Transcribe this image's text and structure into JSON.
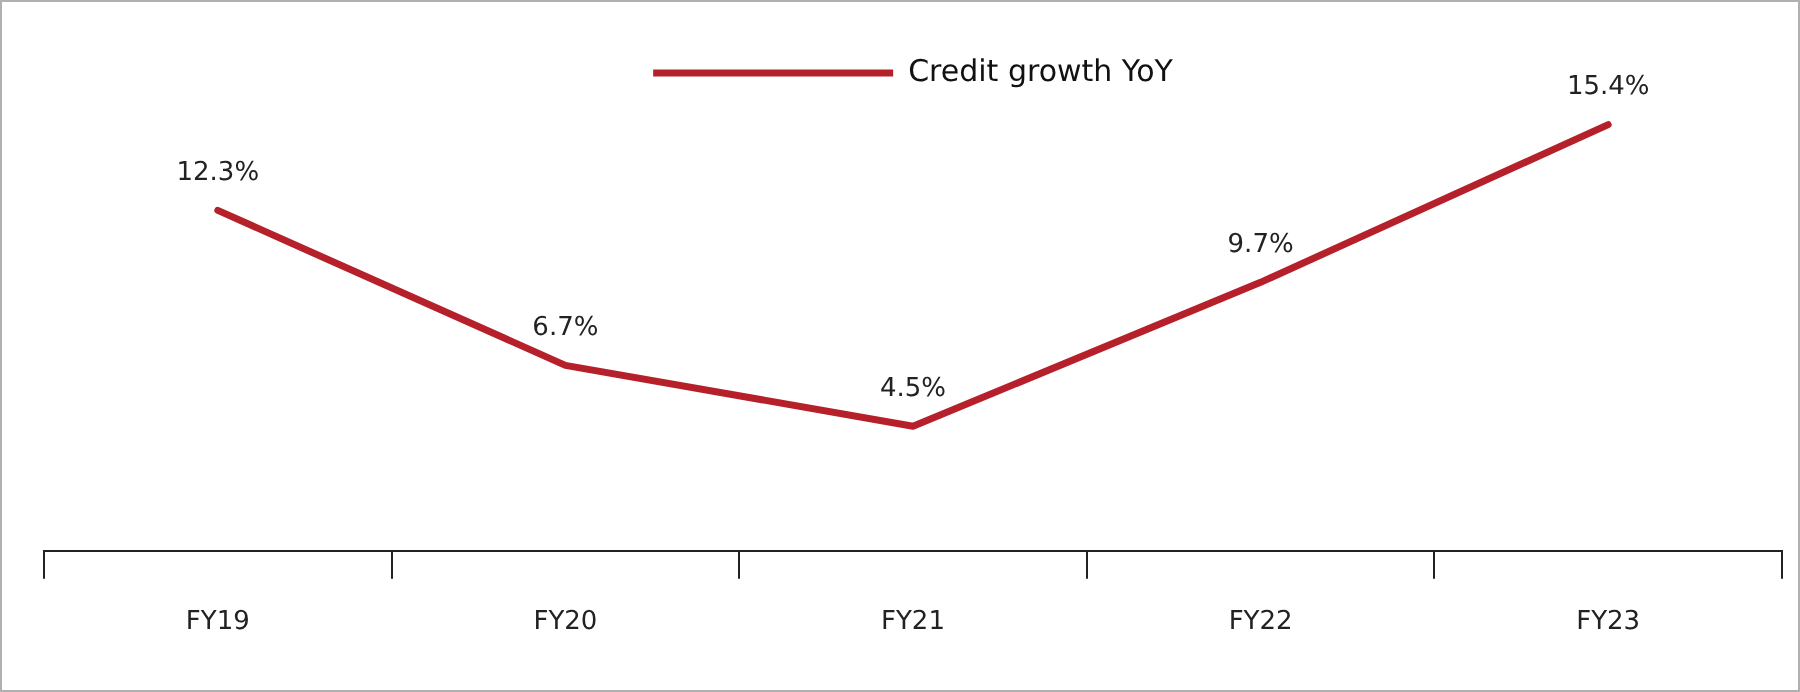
{
  "chart_data": {
    "type": "line",
    "categories": [
      "FY19",
      "FY20",
      "FY21",
      "FY22",
      "FY23"
    ],
    "series": [
      {
        "name": "Credit growth YoY",
        "color": "#b5202a",
        "values": [
          12.3,
          6.7,
          4.5,
          9.7,
          15.4
        ],
        "value_labels": [
          "12.3%",
          "6.7%",
          "4.5%",
          "9.7%",
          "15.4%"
        ]
      }
    ],
    "legend": "top",
    "grid": false,
    "marker": "none",
    "line_style": "solid"
  }
}
